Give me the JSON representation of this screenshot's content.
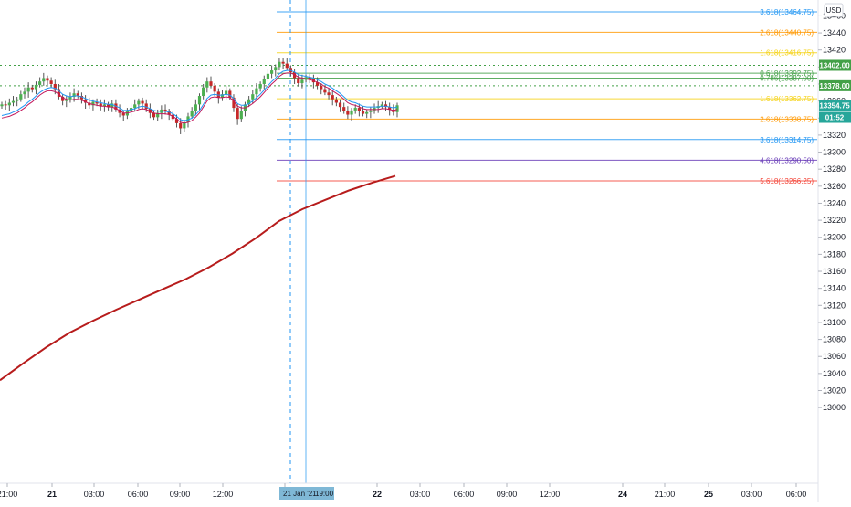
{
  "chart_data": {
    "type": "candlestick",
    "currency": "USD",
    "ylim": [
      12990,
      13470
    ],
    "y_ticks": [
      13000,
      13020,
      13040,
      13060,
      13080,
      13100,
      13120,
      13140,
      13160,
      13180,
      13200,
      13220,
      13240,
      13260,
      13280,
      13300,
      13320,
      13340,
      13360,
      13380,
      13400,
      13420,
      13440,
      13460
    ],
    "x_ticks": [
      "21:00",
      "21",
      "03:00",
      "06:00",
      "09:00",
      "12:00",
      "00",
      "22",
      "03:00",
      "06:00",
      "09:00",
      "12:00",
      "24",
      "21:00",
      "25",
      "03:00",
      "06:00"
    ],
    "crosshair_date": "21 Jan '21",
    "crosshair_time": "19:00",
    "countdown": "01:52",
    "last_price": 13354.75,
    "last_price_label": "13354.75",
    "price_tags": [
      {
        "value": 13402.0,
        "label": "13402.00",
        "color": "#43a047"
      },
      {
        "value": 13378.0,
        "label": "13378.00",
        "color": "#43a047"
      }
    ],
    "fib_levels": [
      {
        "value": 13464.75,
        "label": "3.618(13464.75)",
        "color": "#2196f3"
      },
      {
        "value": 13440.75,
        "label": "2.618(13440.75)",
        "color": "#ff9800"
      },
      {
        "value": 13416.75,
        "label": "1.618(13416.75)",
        "color": "#f5d215"
      },
      {
        "value": 13392.75,
        "label": "0.618(13392.75)",
        "color": "#43a047"
      },
      {
        "value": 13387.0,
        "label": "0.786(13387.00)",
        "color": "#43a047"
      },
      {
        "value": 13362.75,
        "label": "1.618(13362.75)",
        "color": "#f5d215"
      },
      {
        "value": 13338.75,
        "label": "2.618(13338.75)",
        "color": "#ff9800"
      },
      {
        "value": 13314.75,
        "label": "3.618(13314.75)",
        "color": "#2196f3"
      },
      {
        "value": 13290.5,
        "label": "4.618(13290.50)",
        "color": "#673ab7"
      },
      {
        "value": 13266.25,
        "label": "5.618(13266.25)",
        "color": "#f44336"
      }
    ],
    "closes": [
      13356,
      13355,
      13358,
      13360,
      13362,
      13368,
      13371,
      13376,
      13374,
      13379,
      13383,
      13387,
      13384,
      13380,
      13374,
      13365,
      13360,
      13362,
      13365,
      13369,
      13366,
      13362,
      13358,
      13355,
      13359,
      13357,
      13354,
      13356,
      13353,
      13357,
      13350,
      13346,
      13343,
      13348,
      13352,
      13356,
      13360,
      13357,
      13351,
      13346,
      13341,
      13346,
      13350,
      13348,
      13344,
      13339,
      13334,
      13328,
      13335,
      13342,
      13348,
      13356,
      13366,
      13376,
      13383,
      13378,
      13371,
      13364,
      13368,
      13372,
      13364,
      13352,
      13339,
      13348,
      13356,
      13362,
      13368,
      13375,
      13380,
      13386,
      13392,
      13396,
      13400,
      13406,
      13404,
      13399,
      13394,
      13387,
      13381,
      13385,
      13388,
      13386,
      13382,
      13378,
      13374,
      13370,
      13367,
      13362,
      13358,
      13353,
      13348,
      13344,
      13349,
      13352,
      13348,
      13345,
      13347,
      13349,
      13352,
      13354,
      13356,
      13353,
      13350,
      13347,
      13355
    ],
    "series": [
      {
        "name": "",
        "color": "#2196f3",
        "values": [
          13343,
          13344,
          13345,
          13347,
          13349,
          13352,
          13355,
          13359,
          13362,
          13366,
          13370,
          13373,
          13375,
          13376,
          13375,
          13372,
          13368,
          13366,
          13365,
          13366,
          13366,
          13365,
          13363,
          13361,
          13360,
          13359,
          13358,
          13357,
          13356,
          13356,
          13354,
          13352,
          13349,
          13349,
          13350,
          13351,
          13353,
          13354,
          13353,
          13351,
          13349,
          13348,
          13348,
          13348,
          13347,
          13345,
          13342,
          13338,
          13337,
          13338,
          13340,
          13344,
          13349,
          13356,
          13363,
          13367,
          13368,
          13367,
          13367,
          13368,
          13367,
          13363,
          13357,
          13355,
          13355,
          13357,
          13360,
          13364,
          13368,
          13373,
          13378,
          13383,
          13387,
          13392,
          13395,
          13396,
          13396,
          13394,
          13391,
          13390,
          13389,
          13388,
          13387,
          13385,
          13383,
          13380,
          13378,
          13375,
          13372,
          13369,
          13365,
          13361,
          13359,
          13358,
          13356,
          13354,
          13353,
          13353,
          13353,
          13353,
          13354,
          13354,
          13353,
          13352,
          13353
        ]
      },
      {
        "name": "",
        "color": "#c2185b",
        "values": [
          13340,
          13341,
          13342,
          13344,
          13346,
          13349,
          13352,
          13356,
          13359,
          13363,
          13367,
          13370,
          13372,
          13372,
          13371,
          13368,
          13364,
          13362,
          13361,
          13362,
          13362,
          13361,
          13359,
          13357,
          13356,
          13355,
          13354,
          13354,
          13353,
          13353,
          13351,
          13349,
          13346,
          13346,
          13347,
          13348,
          13350,
          13351,
          13350,
          13348,
          13346,
          13345,
          13345,
          13345,
          13344,
          13342,
          13339,
          13335,
          13334,
          13335,
          13337,
          13341,
          13346,
          13353,
          13360,
          13364,
          13365,
          13364,
          13364,
          13365,
          13364,
          13360,
          13354,
          13352,
          13352,
          13354,
          13357,
          13361,
          13365,
          13370,
          13375,
          13380,
          13384,
          13389,
          13392,
          13393,
          13393,
          13391,
          13388,
          13387,
          13386,
          13385,
          13384,
          13382,
          13380,
          13377,
          13375,
          13372,
          13369,
          13366,
          13362,
          13358,
          13356,
          13355,
          13353,
          13351,
          13350,
          13350,
          13350,
          13350,
          13351,
          13351,
          13350,
          13349,
          13350
        ]
      }
    ],
    "ema_points": [
      [
        0,
        13032
      ],
      [
        12,
        13052
      ],
      [
        24,
        13071
      ],
      [
        36,
        13088
      ],
      [
        48,
        13102
      ],
      [
        60,
        13115
      ],
      [
        72,
        13127
      ],
      [
        84,
        13139
      ],
      [
        96,
        13151
      ],
      [
        108,
        13165
      ],
      [
        120,
        13181
      ],
      [
        132,
        13199
      ],
      [
        144,
        13219
      ],
      [
        156,
        13233
      ],
      [
        168,
        13244
      ],
      [
        180,
        13255
      ],
      [
        192,
        13264
      ],
      [
        204,
        13272
      ]
    ]
  }
}
